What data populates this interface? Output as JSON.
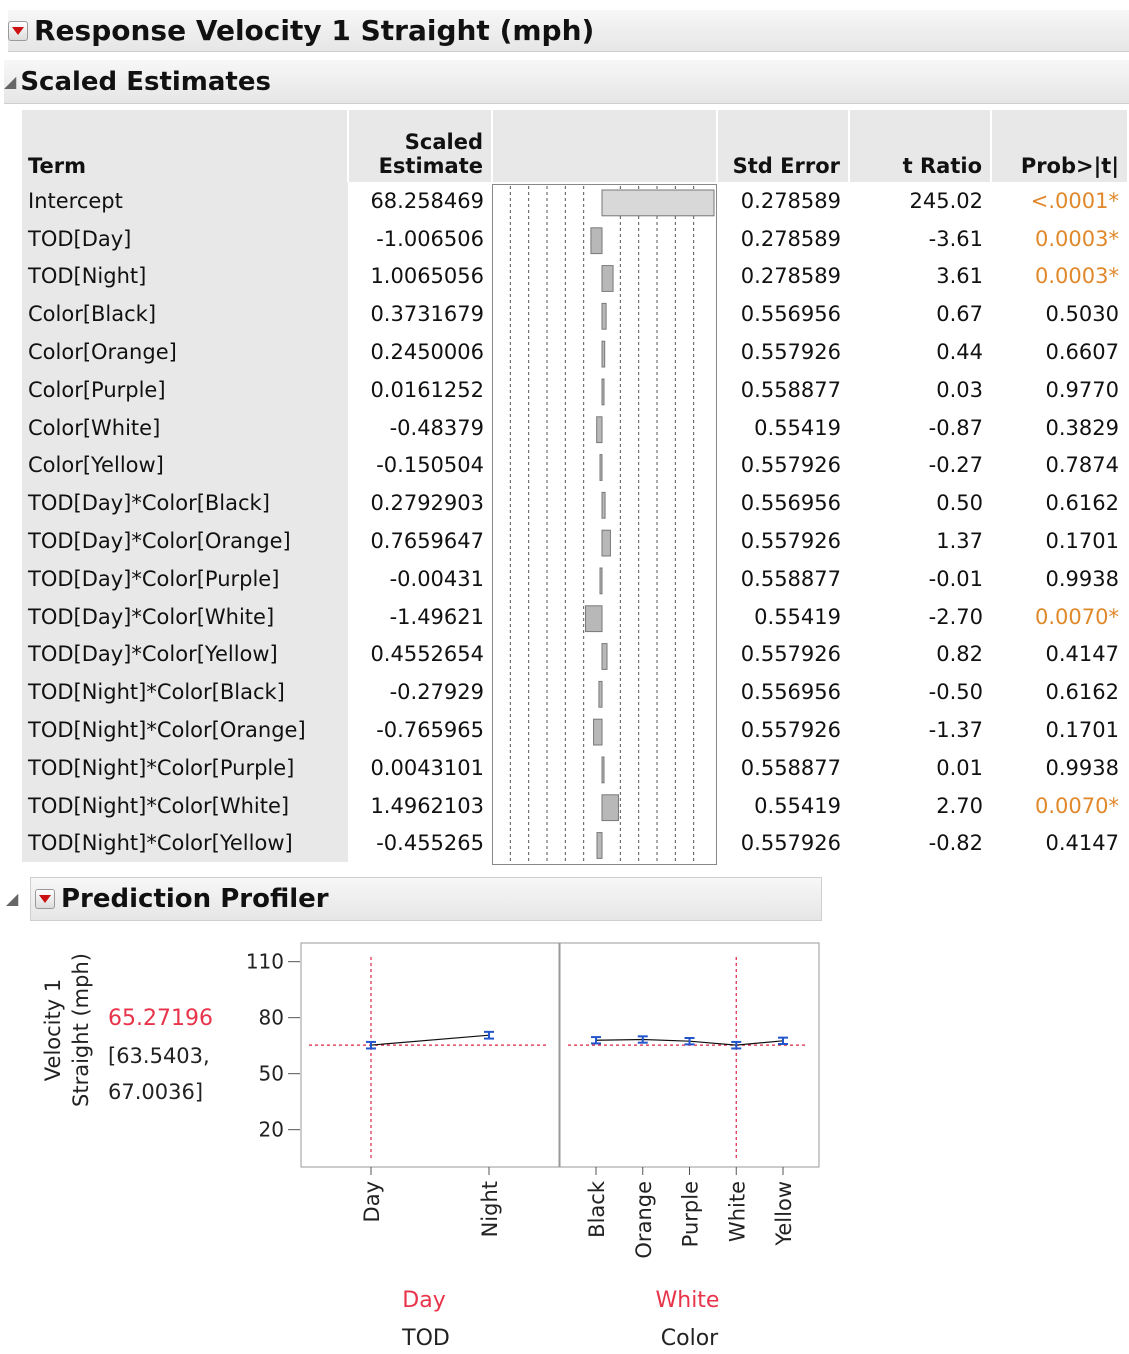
{
  "report": {
    "title": "Response Velocity 1 Straight (mph)"
  },
  "scaled_estimates": {
    "title": "Scaled Estimates",
    "columns": {
      "term": "Term",
      "scaled_line1": "Scaled",
      "scaled_line2": "Estimate",
      "std_error": "Std Error",
      "t_ratio": "t Ratio",
      "prob": "Prob>|t|"
    },
    "rows": [
      {
        "term": "Intercept",
        "estimate": "68.258469",
        "value": 68.258469,
        "std_error": "0.278589",
        "t_ratio": "245.02",
        "prob": "<.0001*",
        "significant": true
      },
      {
        "term": "TOD[Day]",
        "estimate": "-1.006506",
        "value": -1.006506,
        "std_error": "0.278589",
        "t_ratio": "-3.61",
        "prob": "0.0003*",
        "significant": true
      },
      {
        "term": "TOD[Night]",
        "estimate": "1.0065056",
        "value": 1.0065056,
        "std_error": "0.278589",
        "t_ratio": "3.61",
        "prob": "0.0003*",
        "significant": true
      },
      {
        "term": "Color[Black]",
        "estimate": "0.3731679",
        "value": 0.3731679,
        "std_error": "0.556956",
        "t_ratio": "0.67",
        "prob": "0.5030",
        "significant": false
      },
      {
        "term": "Color[Orange]",
        "estimate": "0.2450006",
        "value": 0.2450006,
        "std_error": "0.557926",
        "t_ratio": "0.44",
        "prob": "0.6607",
        "significant": false
      },
      {
        "term": "Color[Purple]",
        "estimate": "0.0161252",
        "value": 0.0161252,
        "std_error": "0.558877",
        "t_ratio": "0.03",
        "prob": "0.9770",
        "significant": false
      },
      {
        "term": "Color[White]",
        "estimate": "-0.48379",
        "value": -0.48379,
        "std_error": "0.55419",
        "t_ratio": "-0.87",
        "prob": "0.3829",
        "significant": false
      },
      {
        "term": "Color[Yellow]",
        "estimate": "-0.150504",
        "value": -0.150504,
        "std_error": "0.557926",
        "t_ratio": "-0.27",
        "prob": "0.7874",
        "significant": false
      },
      {
        "term": "TOD[Day]*Color[Black]",
        "estimate": "0.2792903",
        "value": 0.2792903,
        "std_error": "0.556956",
        "t_ratio": "0.50",
        "prob": "0.6162",
        "significant": false
      },
      {
        "term": "TOD[Day]*Color[Orange]",
        "estimate": "0.7659647",
        "value": 0.7659647,
        "std_error": "0.557926",
        "t_ratio": "1.37",
        "prob": "0.1701",
        "significant": false
      },
      {
        "term": "TOD[Day]*Color[Purple]",
        "estimate": "-0.00431",
        "value": -0.00431,
        "std_error": "0.558877",
        "t_ratio": "-0.01",
        "prob": "0.9938",
        "significant": false
      },
      {
        "term": "TOD[Day]*Color[White]",
        "estimate": "-1.49621",
        "value": -1.49621,
        "std_error": "0.55419",
        "t_ratio": "-2.70",
        "prob": "0.0070*",
        "significant": true
      },
      {
        "term": "TOD[Day]*Color[Yellow]",
        "estimate": "0.4552654",
        "value": 0.4552654,
        "std_error": "0.557926",
        "t_ratio": "0.82",
        "prob": "0.4147",
        "significant": false
      },
      {
        "term": "TOD[Night]*Color[Black]",
        "estimate": "-0.27929",
        "value": -0.27929,
        "std_error": "0.556956",
        "t_ratio": "-0.50",
        "prob": "0.6162",
        "significant": false
      },
      {
        "term": "TOD[Night]*Color[Orange]",
        "estimate": "-0.765965",
        "value": -0.765965,
        "std_error": "0.557926",
        "t_ratio": "-1.37",
        "prob": "0.1701",
        "significant": false
      },
      {
        "term": "TOD[Night]*Color[Purple]",
        "estimate": "0.0043101",
        "value": 0.0043101,
        "std_error": "0.558877",
        "t_ratio": "0.01",
        "prob": "0.9938",
        "significant": false
      },
      {
        "term": "TOD[Night]*Color[White]",
        "estimate": "1.4962103",
        "value": 1.4962103,
        "std_error": "0.55419",
        "t_ratio": "2.70",
        "prob": "0.0070*",
        "significant": true
      },
      {
        "term": "TOD[Night]*Color[Yellow]",
        "estimate": "-0.455265",
        "value": -0.455265,
        "std_error": "0.557926",
        "t_ratio": "-0.82",
        "prob": "0.4147",
        "significant": false
      }
    ],
    "bar_scale_max": 6
  },
  "profiler": {
    "title": "Prediction Profiler",
    "y_label_line1": "Velocity 1",
    "y_label_line2": "Straight (mph)",
    "predicted_value": "65.27196",
    "ci_line1": "[63.5403,",
    "ci_line2": "67.0036]",
    "y_axis": {
      "ticks": [
        110,
        80,
        50,
        20
      ],
      "range": [
        0,
        120
      ]
    },
    "current_y": 65.27196,
    "chart_data": [
      {
        "type": "line",
        "factor": "TOD",
        "current_level": "Day",
        "categories": [
          "Day",
          "Night"
        ],
        "values": [
          65.3,
          70.6
        ],
        "ci": [
          [
            63.5,
            67.0
          ],
          [
            68.8,
            72.4
          ]
        ],
        "ylim": [
          0,
          120
        ]
      },
      {
        "type": "line",
        "factor": "Color",
        "current_level": "White",
        "categories": [
          "Black",
          "Orange",
          "Purple",
          "White",
          "Yellow"
        ],
        "values": [
          67.9,
          68.3,
          67.4,
          65.3,
          67.6
        ],
        "ci": [
          [
            66.2,
            69.6
          ],
          [
            66.6,
            70.0
          ],
          [
            65.7,
            69.1
          ],
          [
            63.5,
            67.0
          ],
          [
            65.9,
            69.3
          ]
        ],
        "ylim": [
          0,
          120
        ]
      }
    ]
  },
  "colors": {
    "significant": "#e0892c",
    "current_value": "#e8344a",
    "ref_line": "#dd2244",
    "ci_bar": "#2255cc",
    "bar_fill": "#b8b8b8"
  }
}
